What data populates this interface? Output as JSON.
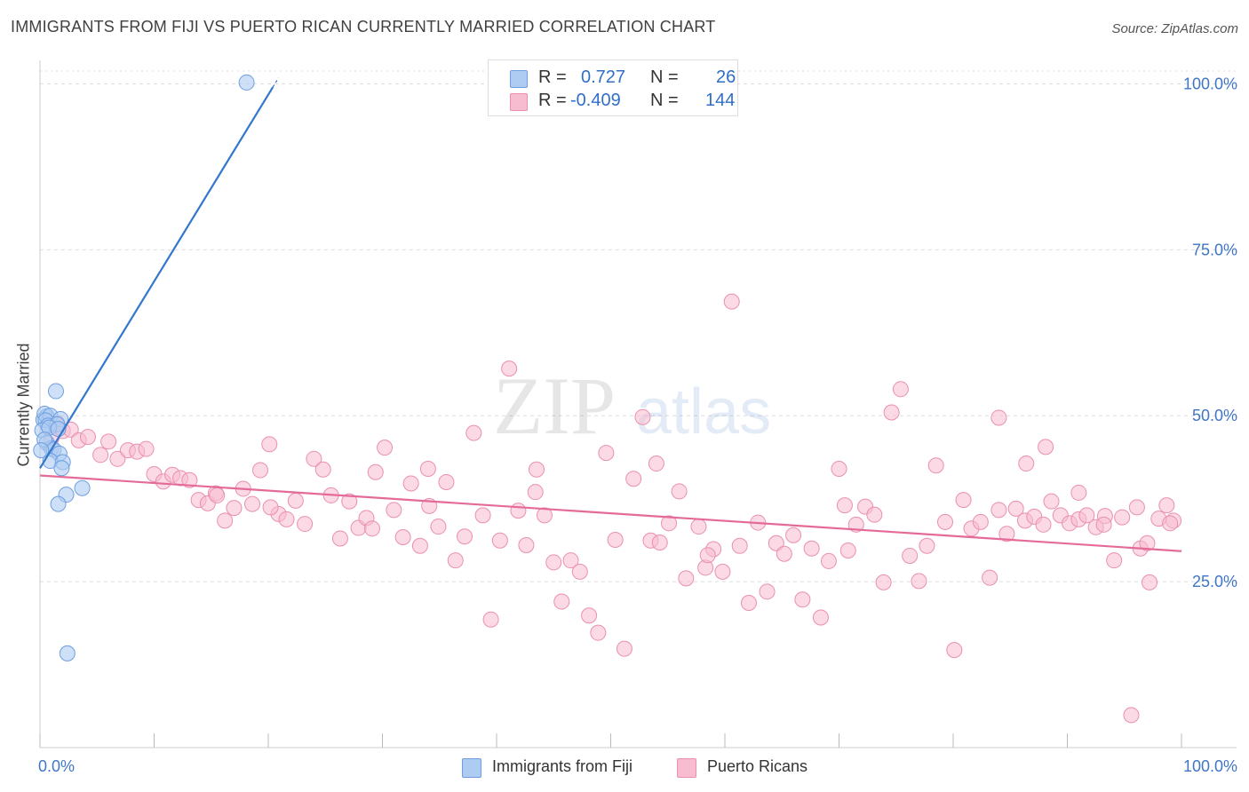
{
  "title": "IMMIGRANTS FROM FIJI VS PUERTO RICAN CURRENTLY MARRIED CORRELATION CHART",
  "source": "Source: ZipAtlas.com",
  "watermark": {
    "zip": "ZIP",
    "atlas": "atlas"
  },
  "legend": {
    "r_label": "R =",
    "n_label": "N =",
    "fiji": {
      "r": "0.727",
      "n": "26"
    },
    "pr": {
      "r": "-0.409",
      "n": "144"
    }
  },
  "bottom_legend": {
    "fiji": "Immigrants from Fiji",
    "pr": "Puerto Ricans"
  },
  "colors": {
    "fiji_fill": "#aecbf2",
    "fiji_stroke": "#6d9ee0",
    "fiji_line": "#3377cc",
    "pr_fill": "#f7bcd0",
    "pr_stroke": "#ea8fb0",
    "pr_line": "#e46b98",
    "tick_label": "#3f76c6",
    "grid": "#dddddd"
  },
  "chart_data": {
    "type": "scatter",
    "title": "IMMIGRANTS FROM FIJI VS PUERTO RICAN CURRENTLY MARRIED CORRELATION CHART",
    "xlabel": "",
    "ylabel": "Currently Married",
    "xlim": [
      0,
      100
    ],
    "ylim": [
      0,
      103
    ],
    "x_ticks": [
      "0.0%",
      "100.0%"
    ],
    "y_ticks": [
      {
        "value": 25,
        "label": "25.0%"
      },
      {
        "value": 50,
        "label": "50.0%"
      },
      {
        "value": 75,
        "label": "75.0%"
      },
      {
        "value": 100,
        "label": "100.0%"
      }
    ],
    "grid": "horizontal dashed",
    "legend_placement": "top-center",
    "series": [
      {
        "name": "Immigrants from Fiji",
        "r": 0.727,
        "n": 26,
        "trend": {
          "x": [
            0,
            20.4
          ],
          "y": [
            42.1,
            99.5
          ]
        },
        "points": [
          [
            18.1,
            100.2
          ],
          [
            1.4,
            53.7
          ],
          [
            0.3,
            49.4
          ],
          [
            0.6,
            49.9
          ],
          [
            0.4,
            50.3
          ],
          [
            0.9,
            50.0
          ],
          [
            0.5,
            49.3
          ],
          [
            0.7,
            48.5
          ],
          [
            1.8,
            49.5
          ],
          [
            1.5,
            48.7
          ],
          [
            0.2,
            47.8
          ],
          [
            0.8,
            48.2
          ],
          [
            1.6,
            48.0
          ],
          [
            0.6,
            45.9
          ],
          [
            1.0,
            45.1
          ],
          [
            0.4,
            46.4
          ],
          [
            1.2,
            44.9
          ],
          [
            1.7,
            44.3
          ],
          [
            0.9,
            43.2
          ],
          [
            2.0,
            43.0
          ],
          [
            1.9,
            42.1
          ],
          [
            3.7,
            39.1
          ],
          [
            2.3,
            38.1
          ],
          [
            1.6,
            36.7
          ],
          [
            2.4,
            14.2
          ],
          [
            0.1,
            44.8
          ]
        ]
      },
      {
        "name": "Puerto Ricans",
        "r": -0.409,
        "n": 144,
        "trend": {
          "x": [
            0,
            100
          ],
          "y": [
            41.0,
            29.6
          ]
        },
        "points": [
          [
            1.0,
            46.6
          ],
          [
            1.5,
            48.9
          ],
          [
            2.0,
            47.7
          ],
          [
            2.7,
            47.9
          ],
          [
            3.4,
            46.3
          ],
          [
            4.2,
            46.8
          ],
          [
            5.3,
            44.1
          ],
          [
            6.0,
            46.1
          ],
          [
            6.8,
            43.5
          ],
          [
            7.7,
            44.8
          ],
          [
            8.5,
            44.6
          ],
          [
            9.3,
            45.0
          ],
          [
            10.0,
            41.2
          ],
          [
            10.8,
            40.1
          ],
          [
            11.6,
            41.1
          ],
          [
            12.3,
            40.6
          ],
          [
            13.1,
            40.3
          ],
          [
            13.9,
            37.3
          ],
          [
            14.7,
            36.8
          ],
          [
            15.4,
            38.3
          ],
          [
            16.2,
            34.2
          ],
          [
            17.0,
            36.1
          ],
          [
            17.8,
            39.0
          ],
          [
            18.6,
            36.7
          ],
          [
            19.3,
            41.8
          ],
          [
            20.1,
            45.7
          ],
          [
            20.9,
            35.2
          ],
          [
            21.6,
            34.4
          ],
          [
            22.4,
            37.2
          ],
          [
            23.2,
            33.7
          ],
          [
            24.0,
            43.5
          ],
          [
            24.8,
            41.9
          ],
          [
            25.5,
            38.0
          ],
          [
            26.3,
            31.5
          ],
          [
            27.1,
            37.1
          ],
          [
            27.9,
            33.1
          ],
          [
            28.6,
            34.6
          ],
          [
            29.4,
            41.5
          ],
          [
            30.2,
            45.2
          ],
          [
            31.0,
            35.8
          ],
          [
            31.8,
            31.7
          ],
          [
            32.5,
            39.8
          ],
          [
            33.3,
            30.4
          ],
          [
            34.1,
            36.4
          ],
          [
            34.9,
            33.3
          ],
          [
            35.6,
            40.0
          ],
          [
            36.4,
            28.2
          ],
          [
            37.2,
            31.8
          ],
          [
            38.0,
            47.4
          ],
          [
            38.8,
            35.0
          ],
          [
            39.5,
            19.3
          ],
          [
            40.3,
            31.2
          ],
          [
            41.1,
            57.1
          ],
          [
            41.9,
            35.7
          ],
          [
            42.6,
            30.5
          ],
          [
            43.4,
            38.5
          ],
          [
            44.2,
            35.0
          ],
          [
            45.0,
            27.9
          ],
          [
            45.7,
            22.0
          ],
          [
            46.5,
            28.2
          ],
          [
            47.3,
            26.5
          ],
          [
            48.1,
            19.9
          ],
          [
            48.9,
            17.3
          ],
          [
            49.6,
            44.4
          ],
          [
            50.4,
            31.3
          ],
          [
            51.2,
            14.9
          ],
          [
            52.0,
            40.5
          ],
          [
            52.8,
            49.8
          ],
          [
            53.5,
            31.2
          ],
          [
            54.3,
            30.9
          ],
          [
            55.1,
            33.8
          ],
          [
            56.0,
            38.6
          ],
          [
            56.6,
            25.5
          ],
          [
            57.7,
            33.3
          ],
          [
            58.3,
            27.1
          ],
          [
            59.0,
            29.9
          ],
          [
            59.8,
            26.5
          ],
          [
            60.6,
            67.2
          ],
          [
            61.3,
            30.4
          ],
          [
            62.1,
            21.8
          ],
          [
            62.9,
            33.9
          ],
          [
            63.7,
            23.5
          ],
          [
            64.5,
            30.8
          ],
          [
            65.2,
            29.2
          ],
          [
            66.0,
            32.0
          ],
          [
            66.8,
            22.3
          ],
          [
            67.6,
            30.0
          ],
          [
            68.4,
            19.6
          ],
          [
            69.1,
            28.1
          ],
          [
            70.0,
            42.0
          ],
          [
            70.8,
            29.7
          ],
          [
            71.5,
            33.6
          ],
          [
            72.3,
            36.3
          ],
          [
            73.1,
            35.1
          ],
          [
            73.9,
            24.9
          ],
          [
            74.6,
            50.5
          ],
          [
            75.4,
            54.0
          ],
          [
            76.2,
            28.9
          ],
          [
            77.0,
            25.1
          ],
          [
            77.7,
            30.4
          ],
          [
            78.5,
            42.5
          ],
          [
            79.3,
            34.0
          ],
          [
            80.1,
            14.7
          ],
          [
            80.9,
            37.3
          ],
          [
            81.6,
            33.0
          ],
          [
            82.4,
            34.0
          ],
          [
            83.2,
            25.6
          ],
          [
            84.0,
            35.8
          ],
          [
            84.7,
            32.2
          ],
          [
            85.5,
            36.0
          ],
          [
            86.3,
            34.2
          ],
          [
            87.1,
            34.8
          ],
          [
            87.9,
            33.6
          ],
          [
            88.6,
            37.1
          ],
          [
            89.4,
            35.0
          ],
          [
            90.2,
            33.8
          ],
          [
            91.0,
            34.4
          ],
          [
            91.7,
            35.0
          ],
          [
            92.5,
            33.2
          ],
          [
            93.3,
            34.9
          ],
          [
            94.1,
            28.2
          ],
          [
            94.8,
            34.7
          ],
          [
            95.6,
            4.9
          ],
          [
            96.4,
            30.0
          ],
          [
            97.2,
            24.9
          ],
          [
            98.0,
            34.5
          ],
          [
            98.7,
            36.5
          ],
          [
            99.3,
            34.2
          ],
          [
            15.5,
            38.0
          ],
          [
            20.2,
            36.2
          ],
          [
            29.1,
            33.0
          ],
          [
            34.0,
            42.0
          ],
          [
            43.5,
            41.9
          ],
          [
            54.0,
            42.8
          ],
          [
            58.5,
            29.0
          ],
          [
            70.5,
            36.5
          ],
          [
            84.0,
            49.7
          ],
          [
            86.4,
            42.8
          ],
          [
            88.1,
            45.3
          ],
          [
            91.0,
            38.4
          ],
          [
            93.2,
            33.6
          ],
          [
            96.1,
            36.2
          ],
          [
            97.0,
            30.8
          ],
          [
            99.0,
            33.8
          ]
        ]
      }
    ]
  }
}
